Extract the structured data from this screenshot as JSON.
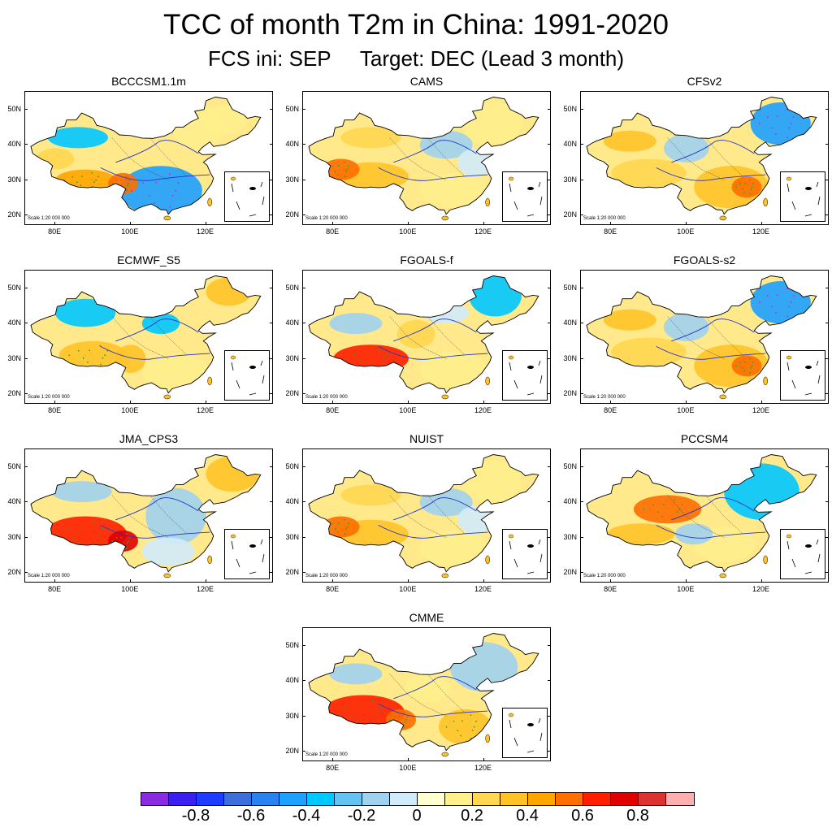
{
  "title": "TCC of month T2m in China: 1991-2020",
  "subtitle_left": "FCS ini: SEP",
  "subtitle_right": "Target: DEC (Lead 3 month)",
  "scale_text": "Scale 1:20 000 000",
  "y_ticks": [
    "50N",
    "40N",
    "30N",
    "20N"
  ],
  "x_ticks": [
    "80E",
    "100E",
    "120E"
  ],
  "panels": [
    {
      "name": "BCCCSM1.1m",
      "pattern": "south-negative"
    },
    {
      "name": "CAMS",
      "pattern": "weak-positive"
    },
    {
      "name": "CFSv2",
      "pattern": "northeast-negative"
    },
    {
      "name": "ECMWF_S5",
      "pattern": "north-negative"
    },
    {
      "name": "FGOALS-f",
      "pattern": "tibet-strong-positive"
    },
    {
      "name": "FGOALS-s2",
      "pattern": "northeast-negative"
    },
    {
      "name": "JMA_CPS3",
      "pattern": "west-strong-positive"
    },
    {
      "name": "NUIST",
      "pattern": "weak-positive"
    },
    {
      "name": "PCCSM4",
      "pattern": "east-negative"
    },
    {
      "name": "CMME",
      "pattern": "west-positive"
    }
  ],
  "colorbar": {
    "colors": [
      "#8a2be2",
      "#3c1ef0",
      "#1e3cff",
      "#3c6edc",
      "#2882f0",
      "#1ea0ff",
      "#00c8ff",
      "#64c3f0",
      "#a0d2f0",
      "#d2ebfa",
      "#ffffd2",
      "#fff08c",
      "#ffd750",
      "#ffc328",
      "#ffa500",
      "#ff6e00",
      "#ff1e00",
      "#e10000",
      "#dc3232",
      "#ffafaf"
    ],
    "labels": [
      "-0.8",
      "-0.6",
      "-0.4",
      "-0.2",
      "0",
      "0.2",
      "0.4",
      "0.6",
      "0.8"
    ]
  }
}
